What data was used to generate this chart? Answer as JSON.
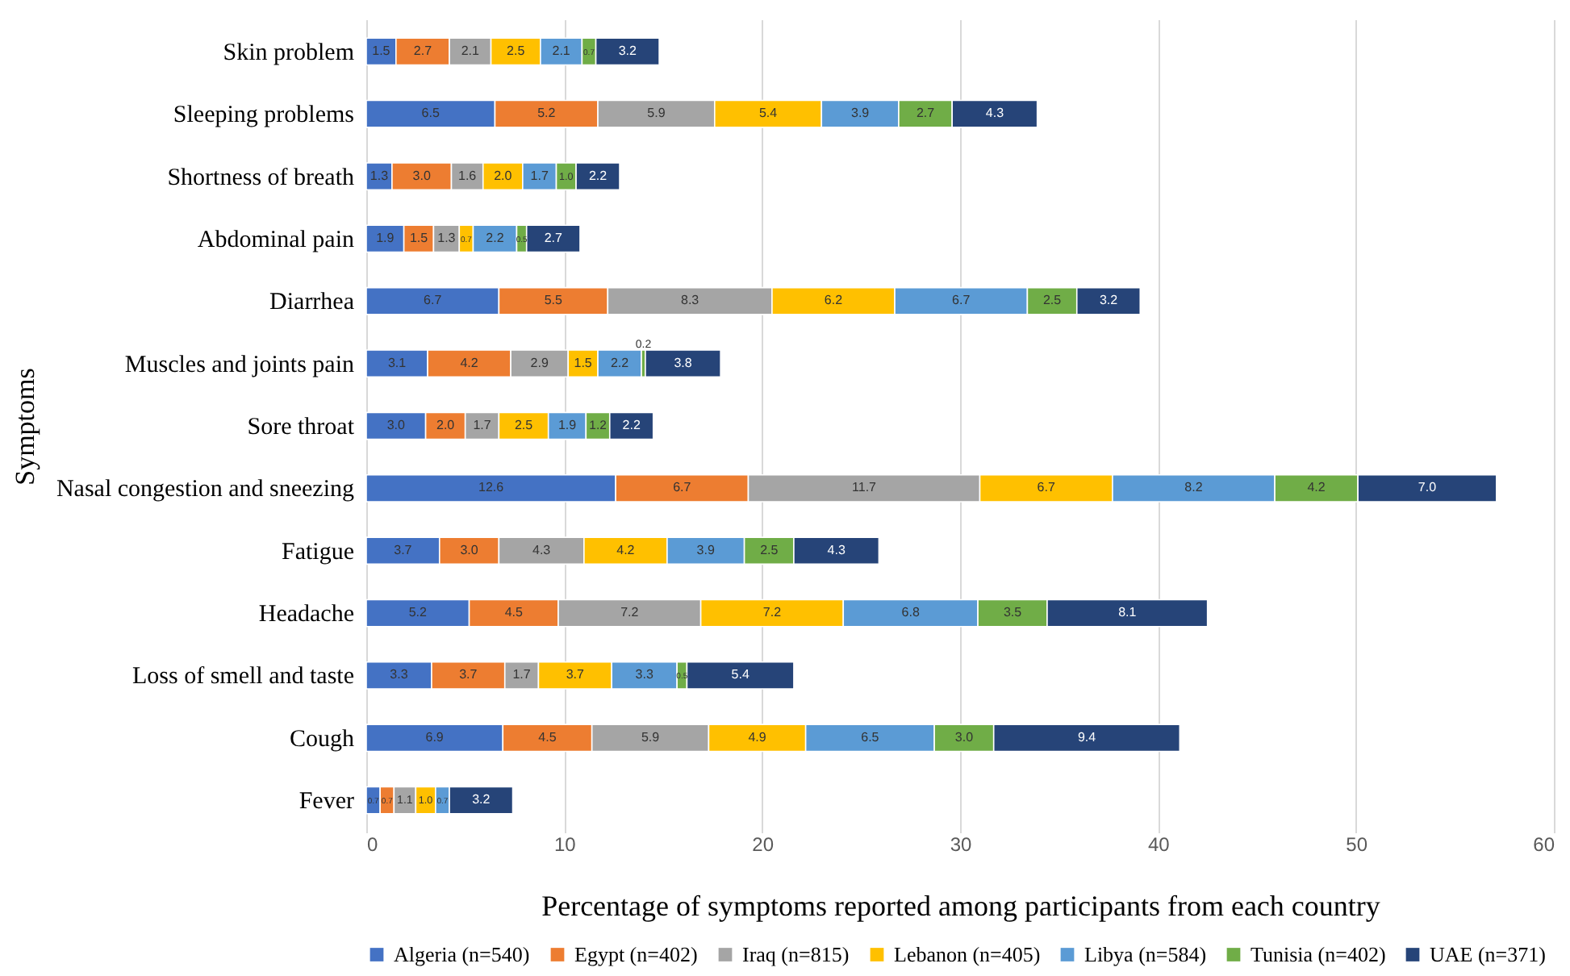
{
  "chart_data": {
    "type": "bar",
    "orientation": "horizontal",
    "stacked": true,
    "grid": "x",
    "legend": "bottom",
    "xlabel": "Percentage of symptoms reported among participants from each country",
    "ylabel": "Symptoms",
    "xlim": [
      0,
      60
    ],
    "xticks": [
      0,
      10,
      20,
      30,
      40,
      50,
      60
    ],
    "categories": [
      "Skin problem",
      "Sleeping problems",
      "Shortness of breath",
      "Abdominal pain",
      "Diarrhea",
      "Muscles and joints pain",
      "Sore throat",
      "Nasal congestion and sneezing",
      "Fatigue",
      "Headache",
      "Loss of smell and taste",
      "Cough",
      "Fever"
    ],
    "series": [
      {
        "name": "Algeria (n=540)",
        "color": "#4472c4",
        "values": [
          1.5,
          6.5,
          1.3,
          1.9,
          6.7,
          3.1,
          3.0,
          12.6,
          3.7,
          5.2,
          3.3,
          6.9,
          0.7
        ],
        "value_labels": [
          "1.5",
          "6.5",
          "1.3",
          "1.9",
          "6.7",
          "3.1",
          "3.0",
          "12.6",
          "3.7",
          "5.2",
          "3.3",
          "6.9",
          "0.7"
        ]
      },
      {
        "name": "Egypt (n=402)",
        "color": "#ed7d31",
        "values": [
          2.7,
          5.2,
          3.0,
          1.5,
          5.5,
          4.2,
          2.0,
          6.7,
          3.0,
          4.5,
          3.7,
          4.5,
          0.7
        ],
        "value_labels": [
          "2.7",
          "5.2",
          "3.0",
          "1.5",
          "5.5",
          "4.2",
          "2.0",
          "6.7",
          "3.0",
          "4.5",
          "3.7",
          "4.5",
          "0.7"
        ]
      },
      {
        "name": "Iraq (n=815)",
        "color": "#a5a5a5",
        "values": [
          2.1,
          5.9,
          1.6,
          1.3,
          8.3,
          2.9,
          1.7,
          11.7,
          4.3,
          7.2,
          1.7,
          5.9,
          1.1
        ],
        "value_labels": [
          "2.1",
          "5.9",
          "1.6",
          "1.3",
          "8.3",
          "2.9",
          "1.7",
          "11.7",
          "4.3",
          "7.2",
          "1.7",
          "5.9",
          "1.1"
        ]
      },
      {
        "name": "Lebanon (n=405)",
        "color": "#ffc000",
        "values": [
          2.5,
          5.4,
          2.0,
          0.7,
          6.2,
          1.5,
          2.5,
          6.7,
          4.2,
          7.2,
          3.7,
          4.9,
          1.0
        ],
        "value_labels": [
          "2.5",
          "5.4",
          "2.0",
          "0.7",
          "6.2",
          "1.5",
          "2.5",
          "6.7",
          "4.2",
          "7.2",
          "3.7",
          "4.9",
          "1.0"
        ]
      },
      {
        "name": "Libya (n=584)",
        "color": "#5b9bd5",
        "values": [
          2.1,
          3.9,
          1.7,
          2.2,
          6.7,
          2.2,
          1.9,
          8.2,
          3.9,
          6.8,
          3.3,
          6.5,
          0.7
        ],
        "value_labels": [
          "2.1",
          "3.9",
          "1.7",
          "2.2",
          "6.7",
          "2.2",
          "1.9",
          "8.2",
          "3.9",
          "6.8",
          "3.3",
          "6.5",
          "0.7"
        ]
      },
      {
        "name": "Tunisia (n=402)",
        "color": "#70ad47",
        "values": [
          0.7,
          2.7,
          1.0,
          0.5,
          2.5,
          0.2,
          1.2,
          4.2,
          2.5,
          3.5,
          0.5,
          3.0,
          null
        ],
        "value_labels": [
          "0.7",
          "2.7",
          "1.0",
          "0.5",
          "2.5",
          "0.2",
          "1.2",
          "4.2",
          "2.5",
          "3.5",
          "0.5",
          "3.0",
          null
        ]
      },
      {
        "name": "UAE (n=371)",
        "color": "#264478",
        "values": [
          3.2,
          4.3,
          2.2,
          2.7,
          3.2,
          3.8,
          2.2,
          7.0,
          4.3,
          8.1,
          5.4,
          9.4,
          3.2
        ],
        "value_labels": [
          "3.2",
          "4.3",
          "2.2",
          "2.7",
          "3.2",
          "3.8",
          "2.2",
          "7.0",
          "4.3",
          "8.1",
          "5.4",
          "9.4",
          "3.2"
        ]
      }
    ]
  }
}
